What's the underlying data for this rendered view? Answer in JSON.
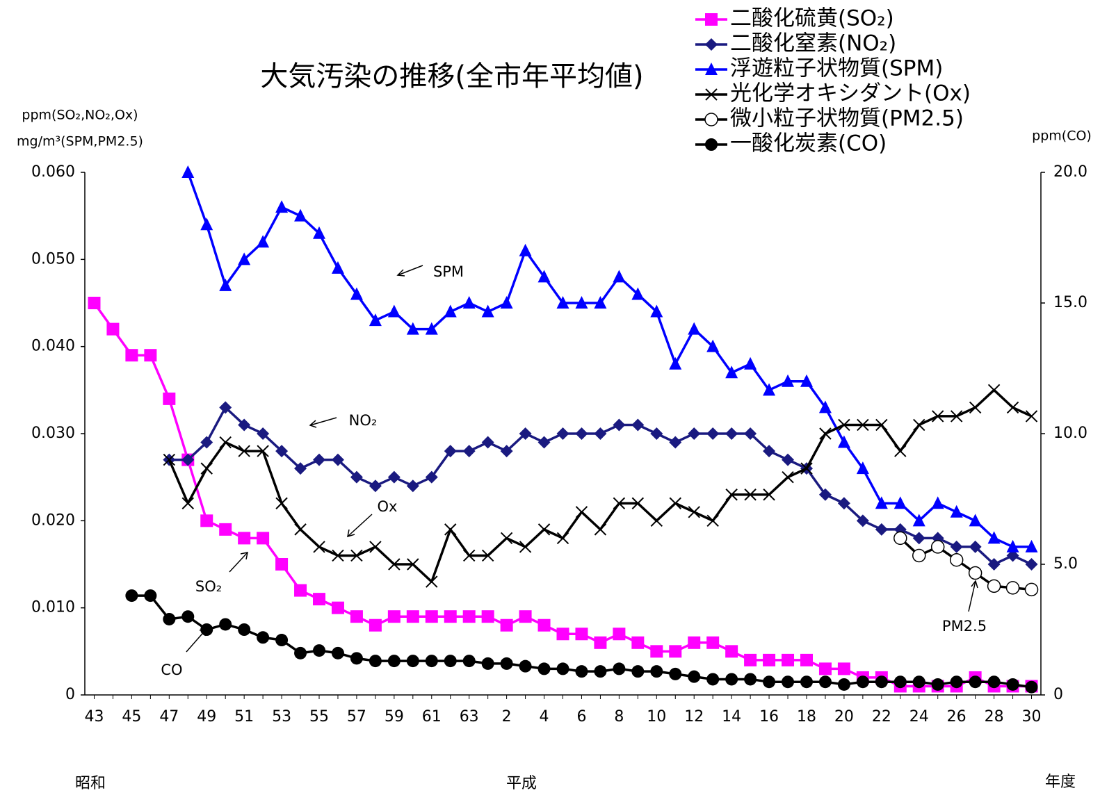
{
  "chart_data": {
    "type": "line",
    "title": "大気汚染の推移(全市年平均値)",
    "y_label_1": "ppm(SO₂,NO₂,Ox)",
    "y_label_2": "mg/m³(SPM,PM2.5)",
    "y2_label": "ppm(CO)",
    "era_labels": [
      "昭和",
      "平成"
    ],
    "x_label": "年度",
    "annotations": [
      "SPM",
      "NO₂",
      "Ox",
      "SO₂",
      "CO",
      "PM2.5"
    ],
    "categories": [
      "43",
      null,
      "45",
      null,
      "47",
      null,
      "49",
      null,
      "51",
      null,
      "53",
      null,
      "55",
      null,
      "57",
      null,
      "59",
      null,
      "61",
      null,
      "63",
      null,
      "2",
      null,
      "4",
      null,
      "6",
      null,
      "8",
      null,
      "10",
      null,
      "12",
      null,
      "14",
      null,
      "16",
      null,
      "18",
      null,
      "20",
      null,
      "22",
      null,
      "24",
      null,
      "26",
      null,
      "28",
      null,
      "30"
    ],
    "ylim": [
      0,
      0.06
    ],
    "yticks": [
      0,
      {
        "value": 0.01,
        "label": "0.010"
      },
      {
        "value": 0.02,
        "label": "0.020"
      },
      {
        "value": 0.03,
        "label": "0.030"
      },
      {
        "value": 0.04,
        "label": "0.040"
      },
      {
        "value": 0.05,
        "label": "0.050"
      },
      {
        "value": 0.06,
        "label": "0.060"
      }
    ],
    "y2lim": [
      0,
      20
    ],
    "y2ticks": [
      0,
      {
        "value": 5,
        "label": "5.0"
      },
      {
        "value": 10,
        "label": "10.0"
      },
      {
        "value": 15,
        "label": "15.0"
      },
      {
        "value": 20,
        "label": "20.0"
      }
    ],
    "grid": false,
    "legend": "top-right",
    "series": [
      {
        "name": "二酸化硫黄(SO₂)",
        "color": "#ff00ff",
        "marker": "square",
        "values": [
          0.045,
          0.042,
          0.039,
          0.039,
          0.034,
          0.027,
          0.02,
          0.019,
          0.018,
          0.018,
          0.015,
          0.012,
          0.011,
          0.01,
          0.009,
          0.008,
          0.009,
          0.009,
          0.009,
          0.009,
          0.009,
          0.009,
          0.008,
          0.009,
          0.008,
          0.007,
          0.007,
          0.006,
          0.007,
          0.006,
          0.005,
          0.005,
          0.006,
          0.006,
          0.005,
          0.004,
          0.004,
          0.004,
          0.004,
          0.003,
          0.003,
          0.002,
          0.002,
          0.001,
          0.001,
          0.001,
          0.001,
          0.002,
          0.001,
          0.001,
          0.001
        ]
      },
      {
        "name": "二酸化窒素(NO₂)",
        "color": "#1a1a80",
        "marker": "diamond",
        "values": [
          null,
          null,
          null,
          null,
          0.027,
          0.027,
          0.029,
          0.033,
          0.031,
          0.03,
          0.028,
          0.026,
          0.027,
          0.027,
          0.025,
          0.024,
          0.025,
          0.024,
          0.025,
          0.028,
          0.028,
          0.029,
          0.028,
          0.03,
          0.029,
          0.03,
          0.03,
          0.03,
          0.031,
          0.031,
          0.03,
          0.029,
          0.03,
          0.03,
          0.03,
          0.03,
          0.028,
          0.027,
          0.026,
          0.023,
          0.022,
          0.02,
          0.019,
          0.019,
          0.018,
          0.018,
          0.017,
          0.017,
          0.015,
          0.016,
          0.015
        ]
      },
      {
        "name": "浮遊粒子状物質(SPM)",
        "color": "#0000ff",
        "marker": "triangle",
        "values": [
          null,
          null,
          null,
          null,
          null,
          0.06,
          0.054,
          0.047,
          0.05,
          0.052,
          0.056,
          0.055,
          0.053,
          0.049,
          0.046,
          0.043,
          0.044,
          0.042,
          0.042,
          0.044,
          0.045,
          0.044,
          0.045,
          0.051,
          0.048,
          0.045,
          0.045,
          0.045,
          0.048,
          0.046,
          0.044,
          0.038,
          0.042,
          0.04,
          0.037,
          0.038,
          0.035,
          0.036,
          0.036,
          0.033,
          0.029,
          0.026,
          0.022,
          0.022,
          0.02,
          0.022,
          0.021,
          0.02,
          0.018,
          0.017,
          0.017
        ]
      },
      {
        "name": "光化学オキシダント(Ox)",
        "color": "#000000",
        "marker": "x",
        "values": [
          null,
          null,
          null,
          null,
          0.027,
          0.022,
          0.026,
          0.029,
          0.028,
          0.028,
          0.022,
          0.019,
          0.017,
          0.016,
          0.016,
          0.017,
          0.015,
          0.015,
          0.013,
          0.019,
          0.016,
          0.016,
          0.018,
          0.017,
          0.019,
          0.018,
          0.021,
          0.019,
          0.022,
          0.022,
          0.02,
          0.022,
          0.021,
          0.02,
          0.023,
          0.023,
          0.023,
          0.025,
          0.026,
          0.03,
          0.031,
          0.031,
          0.031,
          0.028,
          0.031,
          0.032,
          0.032,
          0.033,
          0.035,
          0.033,
          0.032
        ]
      },
      {
        "name": "微小粒子状物質(PM2.5)",
        "color": "#000000",
        "marker": "open-circle",
        "values": [
          null,
          null,
          null,
          null,
          null,
          null,
          null,
          null,
          null,
          null,
          null,
          null,
          null,
          null,
          null,
          null,
          null,
          null,
          null,
          null,
          null,
          null,
          null,
          null,
          null,
          null,
          null,
          null,
          null,
          null,
          null,
          null,
          null,
          null,
          null,
          null,
          null,
          null,
          null,
          null,
          null,
          null,
          null,
          0.018,
          0.016,
          0.017,
          0.0155,
          0.014,
          0.0125,
          0.0123,
          0.0121
        ]
      },
      {
        "name": "一酸化炭素(CO)",
        "color": "#000000",
        "marker": "circle",
        "axis": "y2",
        "values": [
          null,
          null,
          3.8,
          3.8,
          2.9,
          3.0,
          2.5,
          2.7,
          2.5,
          2.2,
          2.1,
          1.6,
          1.7,
          1.6,
          1.4,
          1.3,
          1.3,
          1.3,
          1.3,
          1.3,
          1.3,
          1.2,
          1.2,
          1.1,
          1.0,
          1.0,
          0.9,
          0.9,
          1.0,
          0.9,
          0.9,
          0.8,
          0.7,
          0.6,
          0.6,
          0.6,
          0.5,
          0.5,
          0.5,
          0.5,
          0.4,
          0.5,
          0.5,
          0.5,
          0.5,
          0.4,
          0.5,
          0.5,
          0.5,
          0.4,
          0.3
        ]
      }
    ]
  }
}
